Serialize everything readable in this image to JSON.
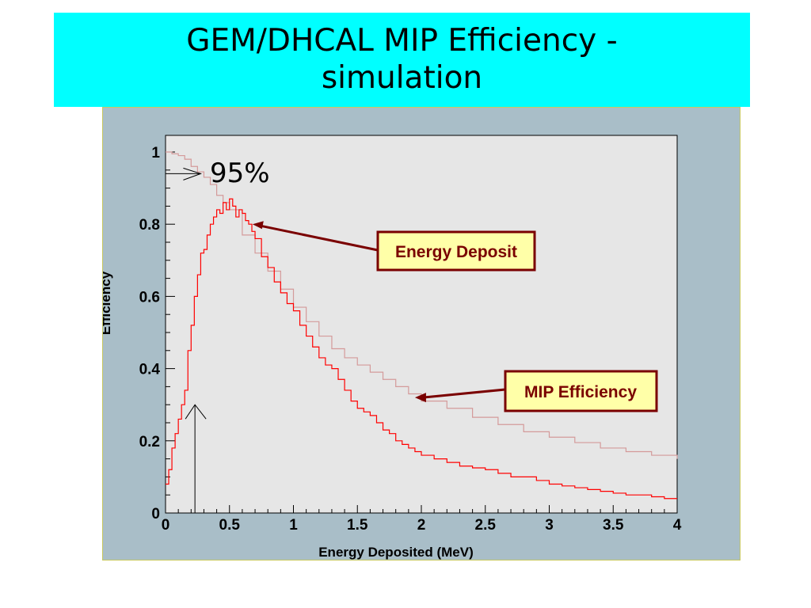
{
  "slide": {
    "title_line1": "GEM/DHCAL MIP Efficiency -",
    "title_line2": "simulation"
  },
  "chart_data": {
    "type": "line",
    "title": "",
    "xlabel": "Energy Deposited (MeV)",
    "ylabel": "Efficiency",
    "xlim": [
      0,
      4
    ],
    "ylim": [
      0,
      1
    ],
    "x_ticks": [
      "0",
      "0.5",
      "1",
      "1.5",
      "2",
      "2.5",
      "3",
      "3.5",
      "4"
    ],
    "y_ticks": [
      "0",
      "0.2",
      "0.4",
      "0.6",
      "0.8",
      "1"
    ],
    "grid": false,
    "series": [
      {
        "name": "MIP Efficiency",
        "color": "#d49a9a",
        "x": [
          0,
          0.05,
          0.1,
          0.15,
          0.2,
          0.25,
          0.3,
          0.35,
          0.4,
          0.45,
          0.5,
          0.6,
          0.7,
          0.8,
          0.9,
          1.0,
          1.1,
          1.2,
          1.3,
          1.4,
          1.5,
          1.6,
          1.7,
          1.8,
          1.9,
          2.0,
          2.2,
          2.4,
          2.6,
          2.8,
          3.0,
          3.2,
          3.4,
          3.6,
          3.8,
          4.0
        ],
        "y": [
          1.0,
          0.995,
          0.99,
          0.98,
          0.96,
          0.945,
          0.93,
          0.91,
          0.88,
          0.86,
          0.84,
          0.77,
          0.72,
          0.67,
          0.62,
          0.57,
          0.53,
          0.49,
          0.455,
          0.43,
          0.41,
          0.39,
          0.37,
          0.35,
          0.33,
          0.31,
          0.29,
          0.265,
          0.245,
          0.225,
          0.21,
          0.195,
          0.18,
          0.17,
          0.16,
          0.15
        ]
      },
      {
        "name": "Energy Deposit",
        "color": "#ff0000",
        "x": [
          0,
          0.025,
          0.05,
          0.075,
          0.1,
          0.125,
          0.15,
          0.175,
          0.2,
          0.225,
          0.25,
          0.275,
          0.3,
          0.325,
          0.35,
          0.375,
          0.4,
          0.425,
          0.45,
          0.475,
          0.5,
          0.525,
          0.55,
          0.575,
          0.6,
          0.625,
          0.65,
          0.675,
          0.7,
          0.75,
          0.8,
          0.85,
          0.9,
          0.95,
          1.0,
          1.05,
          1.1,
          1.15,
          1.2,
          1.25,
          1.3,
          1.35,
          1.4,
          1.45,
          1.5,
          1.55,
          1.6,
          1.65,
          1.7,
          1.75,
          1.8,
          1.85,
          1.9,
          1.95,
          2.0,
          2.1,
          2.2,
          2.3,
          2.4,
          2.5,
          2.6,
          2.7,
          2.8,
          2.9,
          3.0,
          3.1,
          3.2,
          3.3,
          3.4,
          3.5,
          3.6,
          3.7,
          3.8,
          3.9,
          4.0
        ],
        "y": [
          0.08,
          0.12,
          0.18,
          0.22,
          0.26,
          0.3,
          0.34,
          0.45,
          0.52,
          0.6,
          0.66,
          0.72,
          0.73,
          0.77,
          0.8,
          0.82,
          0.84,
          0.83,
          0.86,
          0.84,
          0.87,
          0.85,
          0.82,
          0.84,
          0.83,
          0.81,
          0.8,
          0.78,
          0.76,
          0.71,
          0.68,
          0.64,
          0.61,
          0.58,
          0.56,
          0.52,
          0.49,
          0.46,
          0.43,
          0.41,
          0.4,
          0.37,
          0.34,
          0.31,
          0.29,
          0.28,
          0.27,
          0.25,
          0.23,
          0.22,
          0.2,
          0.19,
          0.18,
          0.17,
          0.16,
          0.15,
          0.14,
          0.13,
          0.125,
          0.12,
          0.11,
          0.1,
          0.1,
          0.09,
          0.08,
          0.075,
          0.07,
          0.065,
          0.06,
          0.055,
          0.05,
          0.05,
          0.045,
          0.04,
          0.04
        ]
      }
    ],
    "annotations": [
      {
        "text": "95%",
        "x": 0.3,
        "y": 0.94,
        "arrow_to": [
          0.3,
          0.94
        ],
        "arrow_from_x": 0
      },
      {
        "text": "Energy Deposit",
        "arrow_to": [
          0.68,
          0.8
        ]
      },
      {
        "text": "MIP Efficiency",
        "arrow_to": [
          1.95,
          0.32
        ]
      },
      {
        "text": "",
        "vertical_marker_x": 0.23,
        "arrow_top_y": 0.3
      }
    ]
  }
}
